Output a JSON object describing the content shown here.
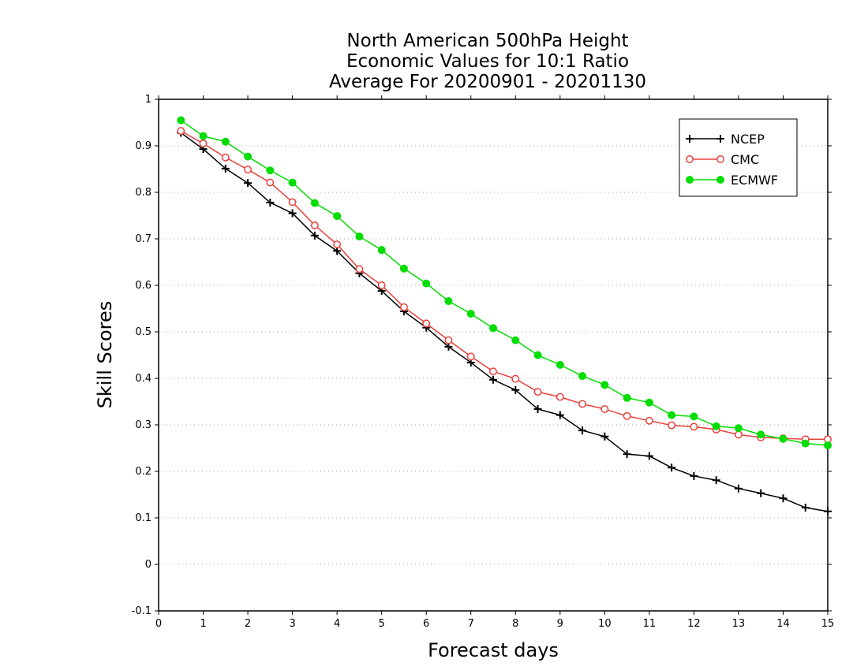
{
  "chart_data": {
    "type": "line",
    "title_lines": [
      "North American 500hPa Height",
      "Economic Values for 10:1 Ratio",
      "Average For 20200901 - 20201130"
    ],
    "xlabel": "Forecast days",
    "ylabel": "Skill Scores",
    "xlim": [
      0,
      15
    ],
    "ylim": [
      -0.1,
      1
    ],
    "xticks": [
      0,
      1,
      2,
      3,
      4,
      5,
      6,
      7,
      8,
      9,
      10,
      11,
      12,
      13,
      14,
      15
    ],
    "yticks": [
      -0.1,
      0,
      0.1,
      0.2,
      0.3,
      0.4,
      0.5,
      0.6,
      0.7,
      0.8,
      0.9,
      1
    ],
    "ytick_labels": [
      "-0.1",
      "0",
      "0.1",
      "0.2",
      "0.3",
      "0.4",
      "0.5",
      "0.6",
      "0.7",
      "0.8",
      "0.9",
      "1"
    ],
    "grid": "horizontal dotted",
    "legend_position": "top-right",
    "x": [
      0.5,
      1,
      1.5,
      2,
      2.5,
      3,
      3.5,
      4,
      4.5,
      5,
      5.5,
      6,
      6.5,
      7,
      7.5,
      8,
      8.5,
      9,
      9.5,
      10,
      10.5,
      11,
      11.5,
      12,
      12.5,
      13,
      13.5,
      14,
      14.5,
      15
    ],
    "series": [
      {
        "name": "NCEP",
        "color": "#000000",
        "marker": "plus",
        "values": [
          0.928,
          0.893,
          0.851,
          0.82,
          0.778,
          0.755,
          0.707,
          0.674,
          0.626,
          0.588,
          0.544,
          0.509,
          0.468,
          0.434,
          0.397,
          0.375,
          0.334,
          0.321,
          0.288,
          0.275,
          0.237,
          0.233,
          0.208,
          0.19,
          0.181,
          0.163,
          0.153,
          0.142,
          0.122,
          0.114
        ]
      },
      {
        "name": "CMC",
        "color": "#e8413c",
        "marker": "open-circle",
        "values": [
          0.932,
          0.905,
          0.875,
          0.849,
          0.821,
          0.779,
          0.729,
          0.688,
          0.635,
          0.6,
          0.553,
          0.518,
          0.482,
          0.447,
          0.415,
          0.399,
          0.371,
          0.36,
          0.345,
          0.334,
          0.319,
          0.309,
          0.299,
          0.296,
          0.29,
          0.279,
          0.273,
          0.271,
          0.269,
          0.269
        ]
      },
      {
        "name": "ECMWF",
        "color": "#00dd00",
        "marker": "filled-circle",
        "values": [
          0.955,
          0.921,
          0.909,
          0.877,
          0.847,
          0.821,
          0.777,
          0.749,
          0.705,
          0.676,
          0.636,
          0.604,
          0.566,
          0.539,
          0.508,
          0.482,
          0.45,
          0.429,
          0.405,
          0.386,
          0.358,
          0.348,
          0.321,
          0.318,
          0.297,
          0.293,
          0.279,
          0.27,
          0.26,
          0.256
        ]
      }
    ]
  }
}
